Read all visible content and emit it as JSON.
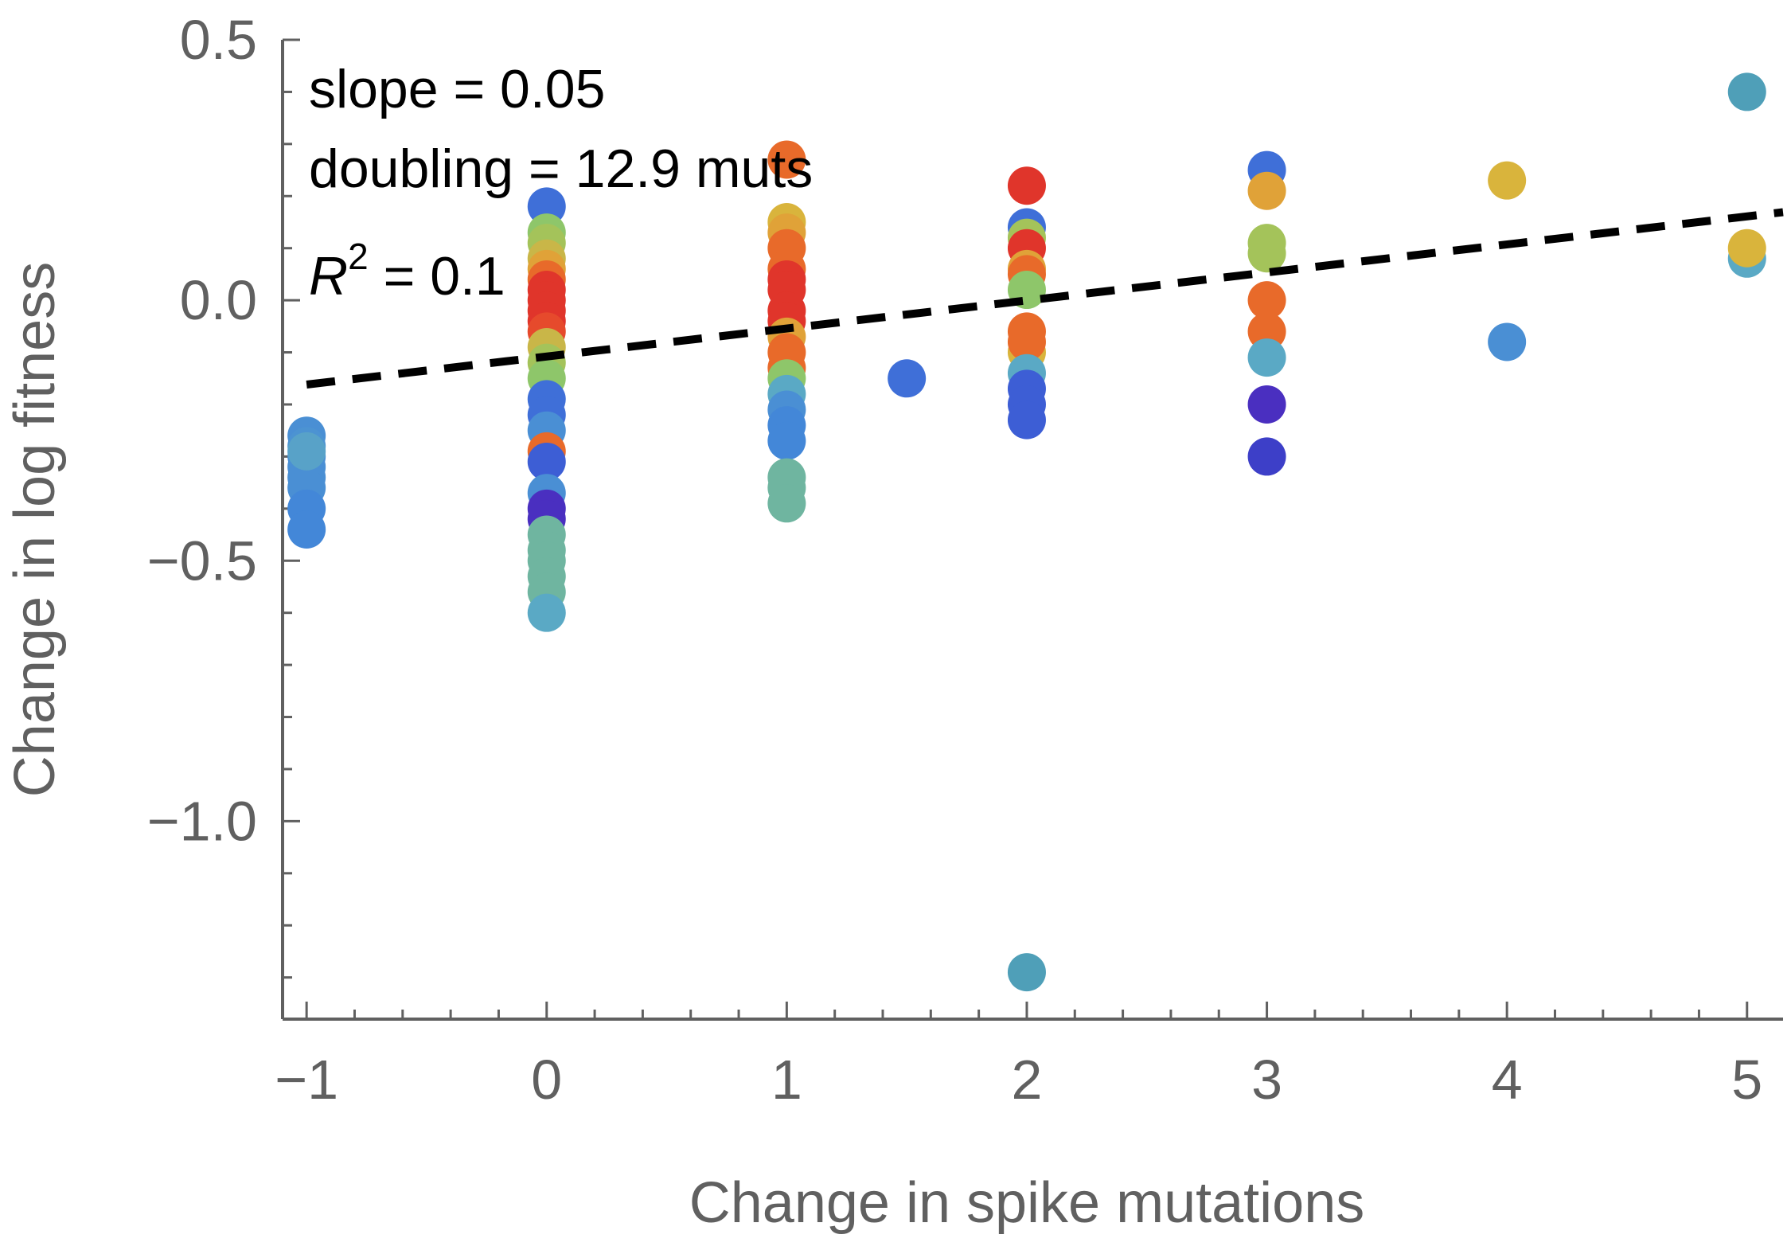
{
  "chart_data": {
    "type": "scatter",
    "xlabel": "Change in spike mutations",
    "ylabel": "Change in log fitness",
    "xlim": [
      -1.1,
      5.15
    ],
    "ylim": [
      -1.38,
      0.5
    ],
    "x_ticks": [
      -1,
      0,
      1,
      2,
      3,
      4,
      5
    ],
    "x_tick_labels": [
      "−1",
      "0",
      "1",
      "2",
      "3",
      "4",
      "5"
    ],
    "y_ticks": [
      0.5,
      0.0,
      -0.5,
      -1.0
    ],
    "y_tick_labels": [
      "0.5",
      "0.0",
      "−0.5",
      "−1.0"
    ],
    "grid": false,
    "legend": "none",
    "annotations": {
      "slope_text": "slope = 0.05",
      "doubling_text": "doubling = 12.9 muts",
      "r2_symbol": "R",
      "r2_exponent": "2",
      "r2_value": " = 0.1"
    },
    "fit_line": {
      "slope": 0.0538,
      "intercept": -0.108,
      "style": "dashed",
      "color": "#000000"
    },
    "points": [
      {
        "x": -1,
        "y": -0.26,
        "color": "#4a8fd4"
      },
      {
        "x": -1,
        "y": -0.28,
        "color": "#4c93d2"
      },
      {
        "x": -1,
        "y": -0.3,
        "color": "#4a8fd4"
      },
      {
        "x": -1,
        "y": -0.32,
        "color": "#4a8fd4"
      },
      {
        "x": -1,
        "y": -0.34,
        "color": "#4a8fd4"
      },
      {
        "x": -1,
        "y": -0.36,
        "color": "#4a8fd4"
      },
      {
        "x": -1,
        "y": -0.4,
        "color": "#4387d8"
      },
      {
        "x": -1,
        "y": -0.44,
        "color": "#4387d8"
      },
      {
        "x": -1,
        "y": -0.29,
        "color": "#58a2c8"
      },
      {
        "x": 0,
        "y": 0.18,
        "color": "#3f6fd8"
      },
      {
        "x": 0,
        "y": 0.13,
        "color": "#8ec66a"
      },
      {
        "x": 0,
        "y": 0.11,
        "color": "#a4c35a"
      },
      {
        "x": 0,
        "y": 0.08,
        "color": "#c9b648"
      },
      {
        "x": 0,
        "y": 0.06,
        "color": "#e0a238"
      },
      {
        "x": 0,
        "y": 0.04,
        "color": "#e86a2a"
      },
      {
        "x": 0,
        "y": 0.02,
        "color": "#e0352b"
      },
      {
        "x": 0,
        "y": 0.0,
        "color": "#e0352b"
      },
      {
        "x": 0,
        "y": -0.02,
        "color": "#e0352b"
      },
      {
        "x": 0,
        "y": -0.04,
        "color": "#e0352b"
      },
      {
        "x": 0,
        "y": -0.06,
        "color": "#e64a2c"
      },
      {
        "x": 0,
        "y": -0.09,
        "color": "#c9b648"
      },
      {
        "x": 0,
        "y": -0.12,
        "color": "#a4c35a"
      },
      {
        "x": 0,
        "y": -0.15,
        "color": "#8ec66a"
      },
      {
        "x": 0,
        "y": -0.19,
        "color": "#3f6fd8"
      },
      {
        "x": 0,
        "y": -0.22,
        "color": "#3f6fd8"
      },
      {
        "x": 0,
        "y": -0.25,
        "color": "#4a8fd4"
      },
      {
        "x": 0,
        "y": -0.29,
        "color": "#e86a2a"
      },
      {
        "x": 0,
        "y": -0.31,
        "color": "#3d5ed5"
      },
      {
        "x": 0,
        "y": -0.37,
        "color": "#4a8fd4"
      },
      {
        "x": 0,
        "y": -0.4,
        "color": "#4a2fc0"
      },
      {
        "x": 0,
        "y": -0.42,
        "color": "#4a2fc0"
      },
      {
        "x": 0,
        "y": -0.45,
        "color": "#6fb5a0"
      },
      {
        "x": 0,
        "y": -0.48,
        "color": "#6fb5a0"
      },
      {
        "x": 0,
        "y": -0.5,
        "color": "#6fb5a0"
      },
      {
        "x": 0,
        "y": -0.53,
        "color": "#6fb5a0"
      },
      {
        "x": 0,
        "y": -0.56,
        "color": "#6fb5a0"
      },
      {
        "x": 0,
        "y": -0.6,
        "color": "#5aa9c5"
      },
      {
        "x": 1,
        "y": 0.27,
        "color": "#e86a2a"
      },
      {
        "x": 1,
        "y": 0.15,
        "color": "#d9b43c"
      },
      {
        "x": 1,
        "y": 0.13,
        "color": "#e0a238"
      },
      {
        "x": 1,
        "y": 0.1,
        "color": "#e86a2a"
      },
      {
        "x": 1,
        "y": 0.06,
        "color": "#e86a2a"
      },
      {
        "x": 1,
        "y": 0.04,
        "color": "#e0352b"
      },
      {
        "x": 1,
        "y": 0.02,
        "color": "#e0352b"
      },
      {
        "x": 1,
        "y": -0.02,
        "color": "#e0352b"
      },
      {
        "x": 1,
        "y": -0.04,
        "color": "#e0352b"
      },
      {
        "x": 1,
        "y": -0.07,
        "color": "#e0a238"
      },
      {
        "x": 1,
        "y": -0.1,
        "color": "#e86a2a"
      },
      {
        "x": 1,
        "y": -0.13,
        "color": "#e86a2a"
      },
      {
        "x": 1,
        "y": -0.15,
        "color": "#8ec66a"
      },
      {
        "x": 1,
        "y": -0.18,
        "color": "#5aa9c5"
      },
      {
        "x": 1,
        "y": -0.21,
        "color": "#4a8fd4"
      },
      {
        "x": 1,
        "y": -0.24,
        "color": "#4387d8"
      },
      {
        "x": 1,
        "y": -0.27,
        "color": "#4387d8"
      },
      {
        "x": 1,
        "y": -0.34,
        "color": "#6fb5a0"
      },
      {
        "x": 1,
        "y": -0.36,
        "color": "#6fb5a0"
      },
      {
        "x": 1,
        "y": -0.39,
        "color": "#6fb5a0"
      },
      {
        "x": 1.5,
        "y": -0.15,
        "color": "#3f6fd8"
      },
      {
        "x": 2,
        "y": 0.22,
        "color": "#e0352b"
      },
      {
        "x": 2,
        "y": 0.14,
        "color": "#3f6fd8"
      },
      {
        "x": 2,
        "y": 0.12,
        "color": "#a4c35a"
      },
      {
        "x": 2,
        "y": 0.1,
        "color": "#e0352b"
      },
      {
        "x": 2,
        "y": 0.06,
        "color": "#e0a238"
      },
      {
        "x": 2,
        "y": 0.05,
        "color": "#e86a2a"
      },
      {
        "x": 2,
        "y": 0.02,
        "color": "#8ec66a"
      },
      {
        "x": 2,
        "y": -0.06,
        "color": "#e86a2a"
      },
      {
        "x": 2,
        "y": -0.1,
        "color": "#d9b43c"
      },
      {
        "x": 2,
        "y": -0.08,
        "color": "#e86a2a"
      },
      {
        "x": 2,
        "y": -0.14,
        "color": "#5aa9c5"
      },
      {
        "x": 2,
        "y": -0.17,
        "color": "#3d5ed5"
      },
      {
        "x": 2,
        "y": -0.2,
        "color": "#3d5ed5"
      },
      {
        "x": 2,
        "y": -0.23,
        "color": "#3d5ed5"
      },
      {
        "x": 2,
        "y": -1.29,
        "color": "#4f9fb8"
      },
      {
        "x": 3,
        "y": 0.25,
        "color": "#3f6fd8"
      },
      {
        "x": 3,
        "y": 0.21,
        "color": "#e0a238"
      },
      {
        "x": 3,
        "y": 0.11,
        "color": "#a4c35a"
      },
      {
        "x": 3,
        "y": 0.09,
        "color": "#a4c35a"
      },
      {
        "x": 3,
        "y": 0.0,
        "color": "#e86a2a"
      },
      {
        "x": 3,
        "y": -0.06,
        "color": "#e86a2a"
      },
      {
        "x": 3,
        "y": -0.11,
        "color": "#5aa9c5"
      },
      {
        "x": 3,
        "y": -0.2,
        "color": "#4a2fc0"
      },
      {
        "x": 3,
        "y": -0.3,
        "color": "#3d3fc8"
      },
      {
        "x": 4,
        "y": 0.23,
        "color": "#d9b43c"
      },
      {
        "x": 4,
        "y": -0.08,
        "color": "#4a8fd4"
      },
      {
        "x": 5,
        "y": 0.4,
        "color": "#4f9fb8"
      },
      {
        "x": 5,
        "y": 0.08,
        "color": "#5aa9c5"
      },
      {
        "x": 5,
        "y": 0.1,
        "color": "#d9b43c"
      }
    ]
  }
}
